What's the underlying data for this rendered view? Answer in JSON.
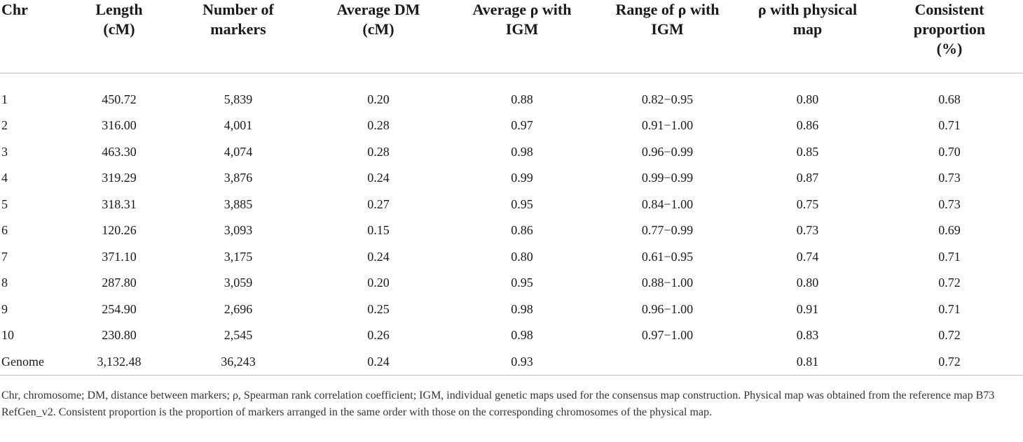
{
  "table": {
    "headers": [
      "Chr",
      "Length\n(cM)",
      "Number of\nmarkers",
      "Average DM\n(cM)",
      "Average ρ with\nIGM",
      "Range of ρ with\nIGM",
      "ρ with physical\nmap",
      "Consistent\nproportion\n(%)"
    ],
    "rows": [
      [
        "1",
        "450.72",
        "5,839",
        "0.20",
        "0.88",
        "0.82−0.95",
        "0.80",
        "0.68"
      ],
      [
        "2",
        "316.00",
        "4,001",
        "0.28",
        "0.97",
        "0.91−1.00",
        "0.86",
        "0.71"
      ],
      [
        "3",
        "463.30",
        "4,074",
        "0.28",
        "0.98",
        "0.96−0.99",
        "0.85",
        "0.70"
      ],
      [
        "4",
        "319.29",
        "3,876",
        "0.24",
        "0.99",
        "0.99−0.99",
        "0.87",
        "0.73"
      ],
      [
        "5",
        "318.31",
        "3,885",
        "0.27",
        "0.95",
        "0.84−1.00",
        "0.75",
        "0.73"
      ],
      [
        "6",
        "120.26",
        "3,093",
        "0.15",
        "0.86",
        "0.77−0.99",
        "0.73",
        "0.69"
      ],
      [
        "7",
        "371.10",
        "3,175",
        "0.24",
        "0.80",
        "0.61−0.95",
        "0.74",
        "0.71"
      ],
      [
        "8",
        "287.80",
        "3,059",
        "0.20",
        "0.95",
        "0.88−1.00",
        "0.80",
        "0.72"
      ],
      [
        "9",
        "254.90",
        "2,696",
        "0.25",
        "0.98",
        "0.96−1.00",
        "0.91",
        "0.71"
      ],
      [
        "10",
        "230.80",
        "2,545",
        "0.26",
        "0.98",
        "0.97−1.00",
        "0.83",
        "0.72"
      ],
      [
        "Genome",
        "3,132.48",
        "36,243",
        "0.24",
        "0.93",
        "",
        "0.81",
        "0.72"
      ]
    ]
  },
  "footnote": "Chr, chromosome; DM, distance between markers; ρ, Spearman rank correlation coefficient; IGM, individual genetic maps used for the consensus map construction. Physical map was obtained from the reference map B73 RefGen_v2. Consistent proportion is the proportion of markers arranged in the same order with those on the corresponding chromosomes of the physical map."
}
